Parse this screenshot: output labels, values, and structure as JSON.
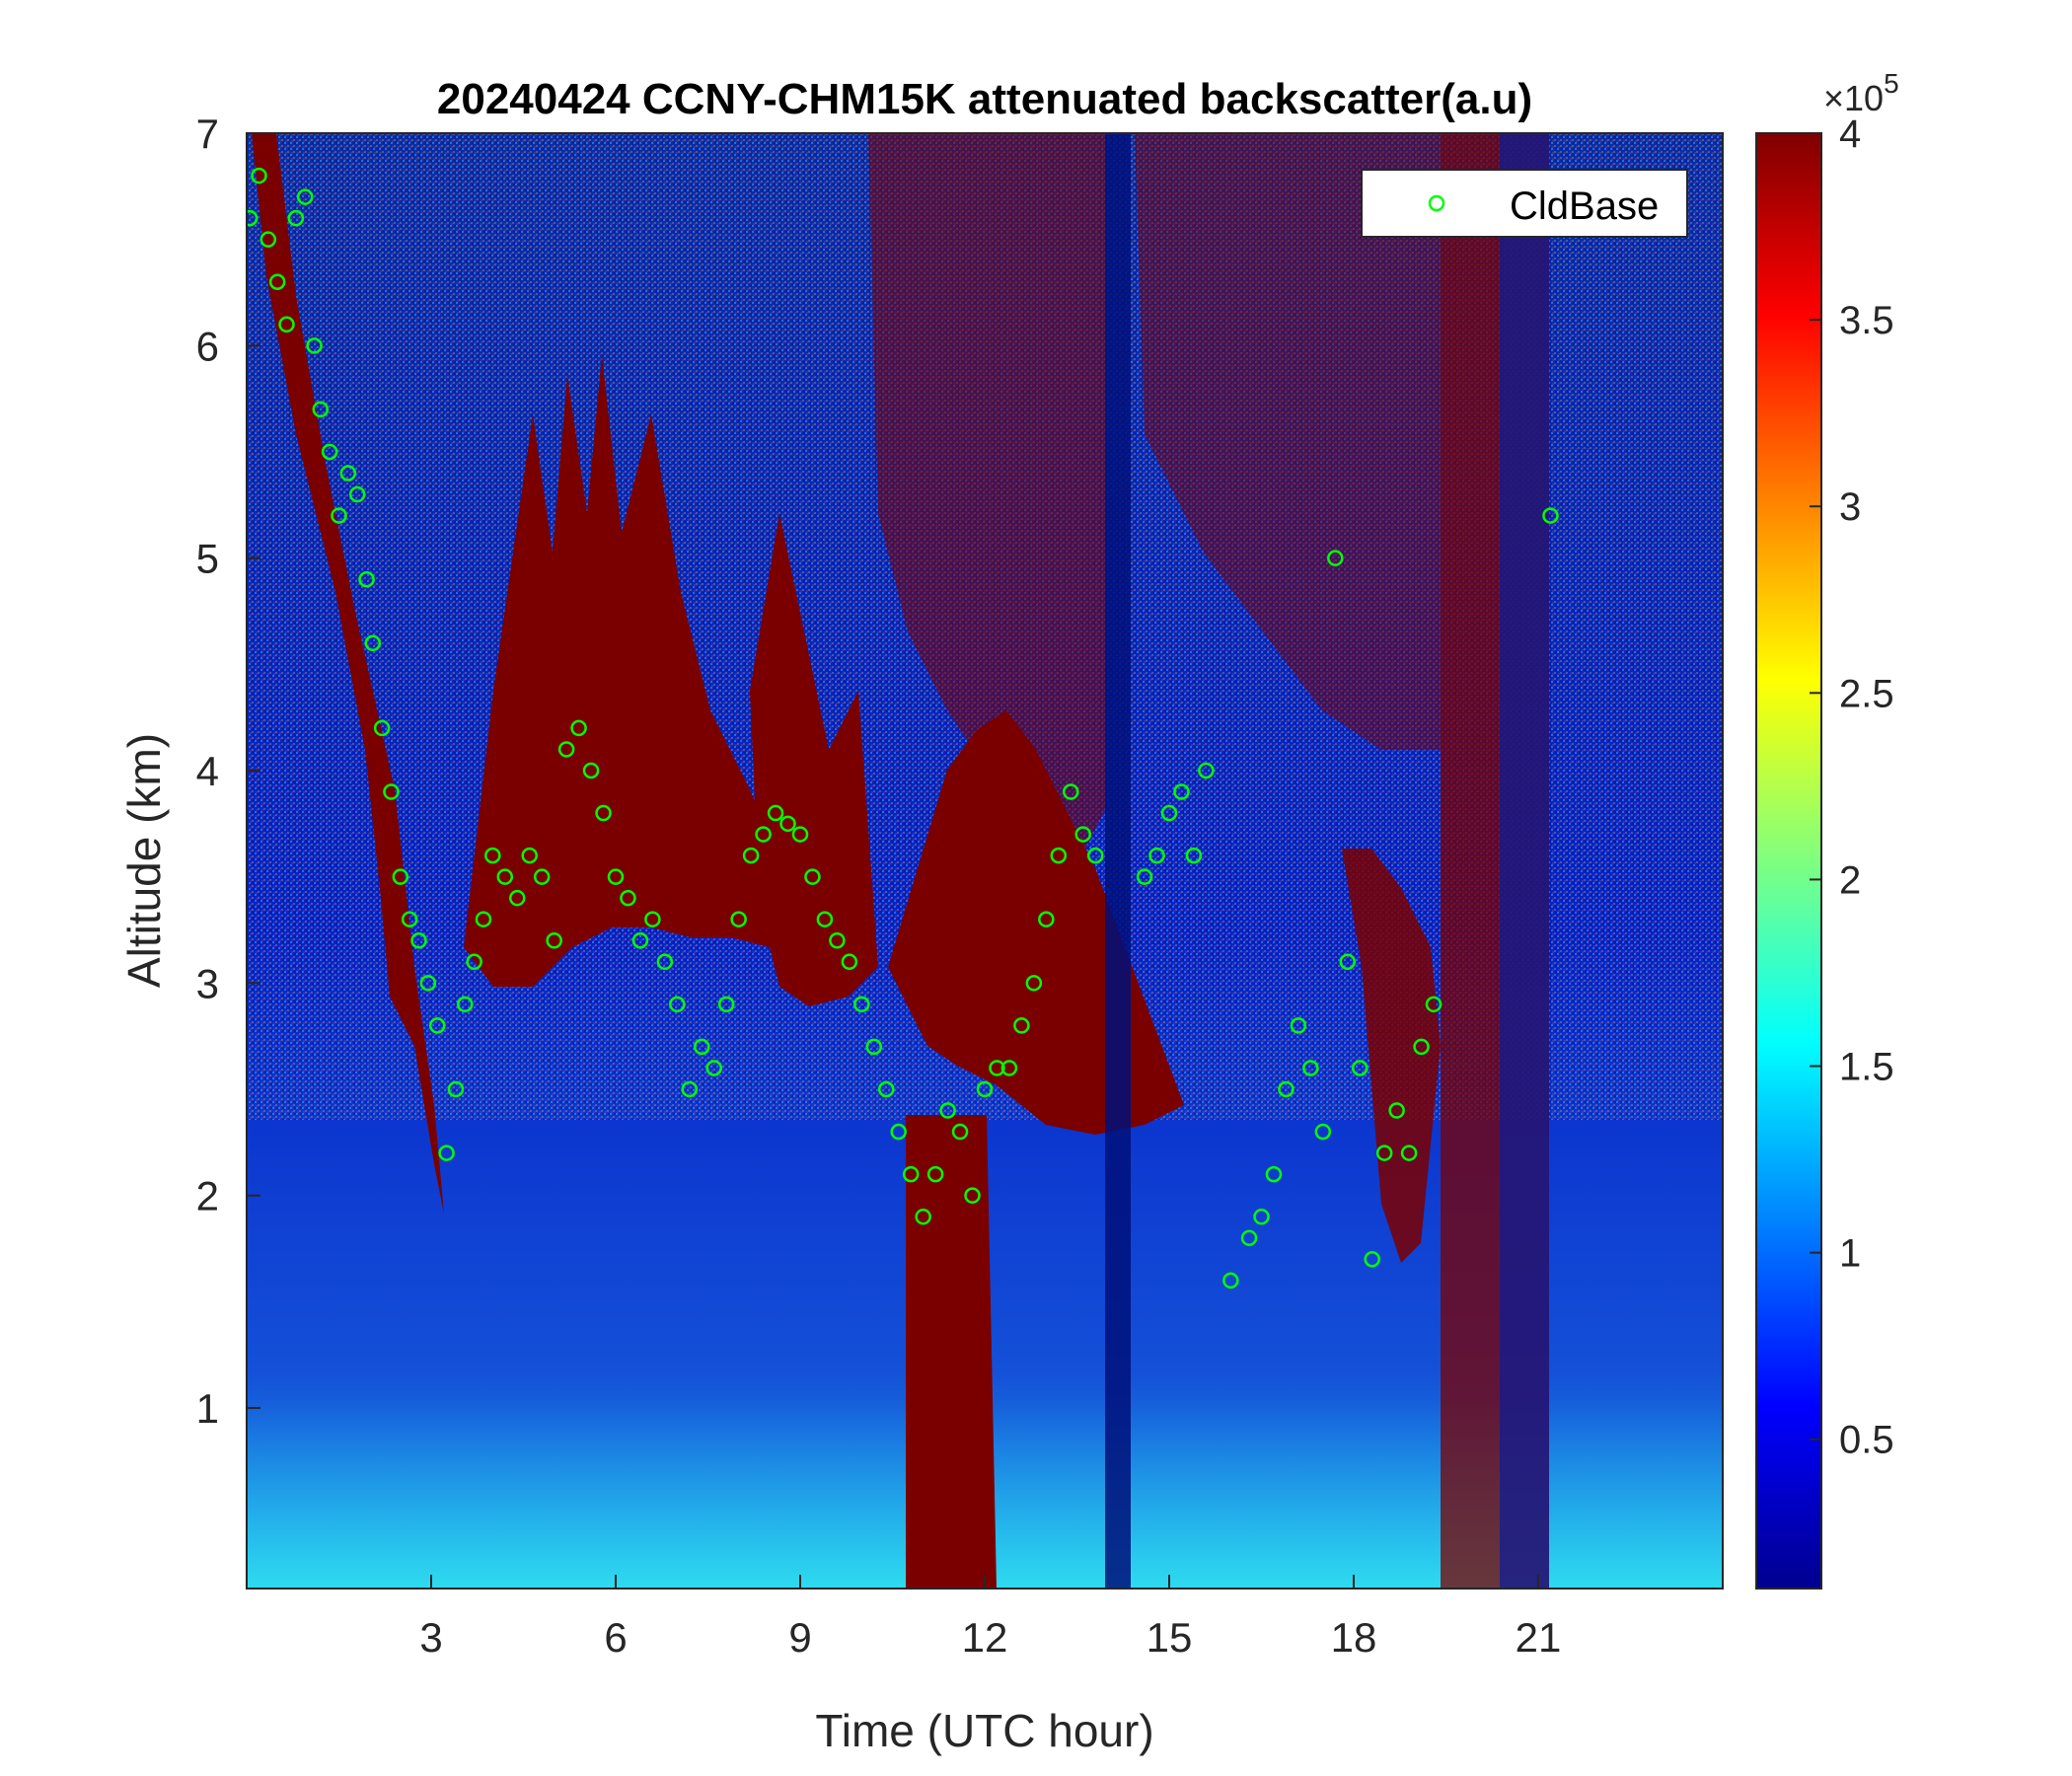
{
  "chart_data": {
    "type": "heatmap",
    "title": "20240424 CCNY-CHM15K attenuated backscatter(a.u)",
    "xlabel": "Time (UTC hour)",
    "ylabel": "Altitude (km)",
    "xlim": [
      0,
      24
    ],
    "ylim": [
      0.15,
      7
    ],
    "xticks": [
      3,
      6,
      9,
      12,
      15,
      18,
      21
    ],
    "yticks": [
      1,
      2,
      3,
      4,
      5,
      6,
      7
    ],
    "colorbar": {
      "range": [
        0.1,
        4
      ],
      "ticks": [
        0.5,
        1,
        1.5,
        2,
        2.5,
        3,
        3.5,
        4
      ],
      "tick_labels": [
        "0.5",
        "1",
        "1.5",
        "2",
        "2.5",
        "3",
        "3.5",
        "4"
      ],
      "multiplier_base": "×10",
      "multiplier_exp": "5",
      "colormap": "jet"
    },
    "legend": {
      "entries": [
        "CldBase"
      ],
      "placement": "top-right",
      "marker": "circle",
      "color": "#00ff00"
    },
    "series": [
      {
        "name": "CldBase",
        "x": [
          0.05,
          0.2,
          0.35,
          0.5,
          0.65,
          0.8,
          0.95,
          1.1,
          1.2,
          1.35,
          1.5,
          1.65,
          1.8,
          1.95,
          2.05,
          2.2,
          2.35,
          2.5,
          2.65,
          2.8,
          2.95,
          3.1,
          3.25,
          3.4,
          3.55,
          3.7,
          3.85,
          4.0,
          4.2,
          4.4,
          4.6,
          4.8,
          5.0,
          5.2,
          5.4,
          5.6,
          5.8,
          6.0,
          6.2,
          6.4,
          6.6,
          6.8,
          7.0,
          7.2,
          7.4,
          7.6,
          7.8,
          8.0,
          8.2,
          8.4,
          8.6,
          8.8,
          9.0,
          9.2,
          9.4,
          9.6,
          9.8,
          10.0,
          10.2,
          10.4,
          10.6,
          10.8,
          11.0,
          11.2,
          11.4,
          11.6,
          11.8,
          12.0,
          12.2,
          12.4,
          12.6,
          12.8,
          13.0,
          13.2,
          13.4,
          13.6,
          13.8,
          14.6,
          14.8,
          15.0,
          15.2,
          15.4,
          15.6,
          16.0,
          16.3,
          16.5,
          16.7,
          16.9,
          17.1,
          17.3,
          17.5,
          17.7,
          17.9,
          18.1,
          18.3,
          18.5,
          18.7,
          18.9,
          19.1,
          19.3,
          21.2
        ],
        "y": [
          6.6,
          6.8,
          6.5,
          6.3,
          6.1,
          6.6,
          6.7,
          6.0,
          5.7,
          5.5,
          5.2,
          5.4,
          5.3,
          4.9,
          4.6,
          4.2,
          3.9,
          3.5,
          3.3,
          3.2,
          3.0,
          2.8,
          2.2,
          2.5,
          2.9,
          3.1,
          3.3,
          3.6,
          3.5,
          3.4,
          3.6,
          3.5,
          3.2,
          4.1,
          4.2,
          4.0,
          3.8,
          3.5,
          3.4,
          3.2,
          3.3,
          3.1,
          2.9,
          2.5,
          2.7,
          2.6,
          2.9,
          3.3,
          3.6,
          3.7,
          3.8,
          3.75,
          3.7,
          3.5,
          3.3,
          3.2,
          3.1,
          2.9,
          2.7,
          2.5,
          2.3,
          2.1,
          1.9,
          2.1,
          2.4,
          2.3,
          2.0,
          2.5,
          2.6,
          2.6,
          2.8,
          3.0,
          3.3,
          3.6,
          3.9,
          3.7,
          3.6,
          3.5,
          3.6,
          3.8,
          3.9,
          3.6,
          4.0,
          1.6,
          1.8,
          1.9,
          2.1,
          2.5,
          2.8,
          2.6,
          2.3,
          5.0,
          3.1,
          2.6,
          1.7,
          2.2,
          2.4,
          2.2,
          2.7,
          2.9,
          5.2
        ]
      }
    ]
  }
}
